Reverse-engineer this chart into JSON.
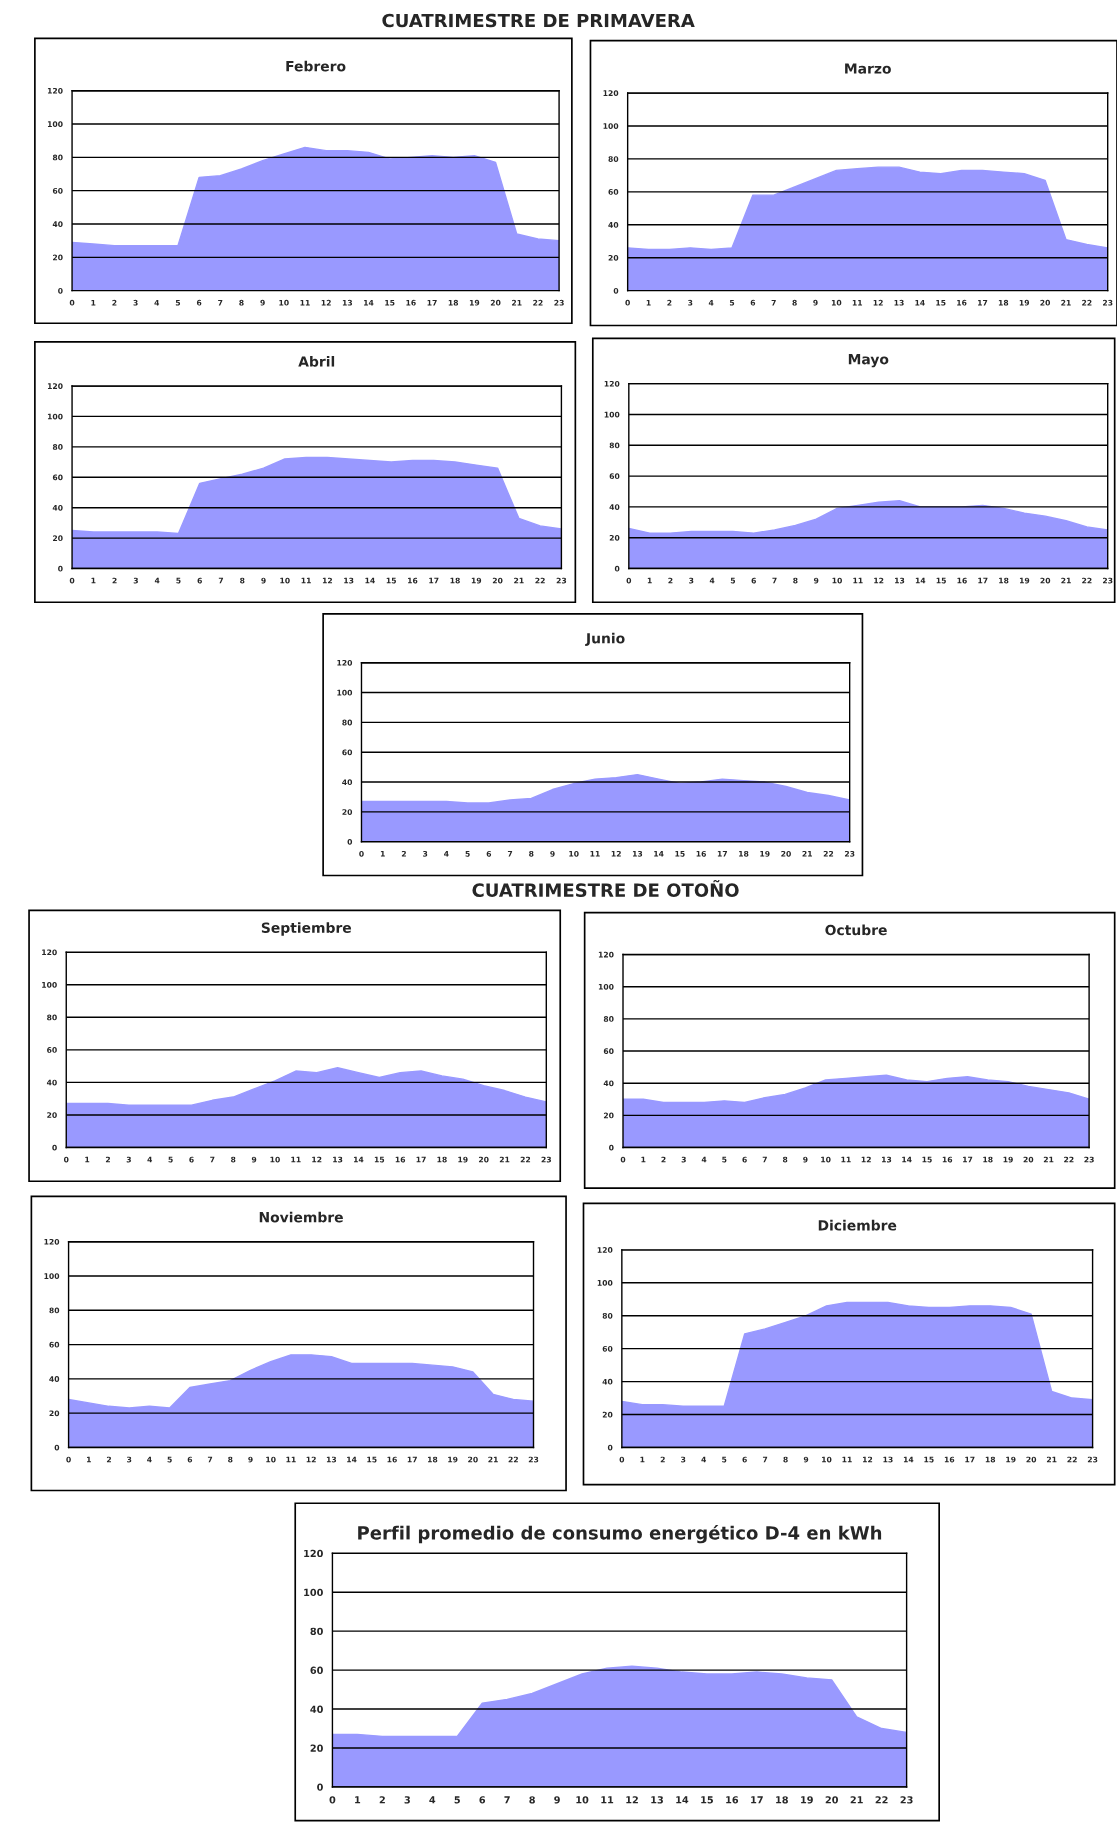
{
  "chart_data": [
    {
      "type": "area",
      "title": "Febrero",
      "annotations": [
        "CUATRIMESTRE DE PRIMAVERA"
      ],
      "categories": [
        "0",
        "1",
        "2",
        "3",
        "4",
        "5",
        "6",
        "7",
        "8",
        "9",
        "10",
        "11",
        "12",
        "13",
        "14",
        "15",
        "16",
        "17",
        "18",
        "19",
        "20",
        "21",
        "22",
        "23"
      ],
      "series": [
        {
          "color": "#9999ff",
          "values": [
            29,
            28,
            27,
            27,
            27,
            27,
            68,
            69,
            73,
            78,
            82,
            86,
            84,
            84,
            83,
            79,
            80,
            81,
            80,
            81,
            77,
            34,
            31,
            30
          ]
        }
      ],
      "ylim": [
        0,
        120
      ],
      "yticks": [
        0,
        20,
        40,
        60,
        80,
        100,
        120
      ],
      "grid": "y"
    },
    {
      "type": "area",
      "title": "Marzo",
      "categories": [
        "0",
        "1",
        "2",
        "3",
        "4",
        "5",
        "6",
        "7",
        "8",
        "9",
        "10",
        "11",
        "12",
        "13",
        "14",
        "15",
        "16",
        "17",
        "18",
        "19",
        "20",
        "21",
        "22",
        "23"
      ],
      "series": [
        {
          "color": "#9999ff",
          "values": [
            26,
            25,
            25,
            26,
            25,
            26,
            58,
            58,
            63,
            68,
            73,
            74,
            75,
            75,
            72,
            71,
            73,
            73,
            72,
            71,
            67,
            31,
            28,
            26
          ]
        }
      ],
      "ylim": [
        0,
        120
      ],
      "yticks": [
        0,
        20,
        40,
        60,
        80,
        100,
        120
      ],
      "grid": "y"
    },
    {
      "type": "area",
      "title": "Abril",
      "categories": [
        "0",
        "1",
        "2",
        "3",
        "4",
        "5",
        "6",
        "7",
        "8",
        "9",
        "10",
        "11",
        "12",
        "13",
        "14",
        "15",
        "16",
        "17",
        "18",
        "19",
        "20",
        "21",
        "22",
        "23"
      ],
      "series": [
        {
          "color": "#9999ff",
          "values": [
            25,
            24,
            24,
            24,
            24,
            23,
            56,
            59,
            62,
            66,
            72,
            73,
            73,
            72,
            71,
            70,
            71,
            71,
            70,
            68,
            66,
            33,
            28,
            26
          ]
        }
      ],
      "ylim": [
        0,
        120
      ],
      "yticks": [
        0,
        20,
        40,
        60,
        80,
        100,
        120
      ],
      "grid": "y"
    },
    {
      "type": "area",
      "title": "Mayo",
      "categories": [
        "0",
        "1",
        "2",
        "3",
        "4",
        "5",
        "6",
        "7",
        "8",
        "9",
        "10",
        "11",
        "12",
        "13",
        "14",
        "15",
        "16",
        "17",
        "18",
        "19",
        "20",
        "21",
        "22",
        "23"
      ],
      "series": [
        {
          "color": "#9999ff",
          "values": [
            26,
            23,
            23,
            24,
            24,
            24,
            23,
            25,
            28,
            32,
            39,
            41,
            43,
            44,
            40,
            40,
            40,
            41,
            39,
            36,
            34,
            31,
            27,
            25
          ]
        }
      ],
      "ylim": [
        0,
        120
      ],
      "yticks": [
        0,
        20,
        40,
        60,
        80,
        100,
        120
      ],
      "grid": "y"
    },
    {
      "type": "area",
      "title": "Junio",
      "categories": [
        "0",
        "1",
        "2",
        "3",
        "4",
        "5",
        "6",
        "7",
        "8",
        "9",
        "10",
        "11",
        "12",
        "13",
        "14",
        "15",
        "16",
        "17",
        "18",
        "19",
        "20",
        "21",
        "22",
        "23"
      ],
      "series": [
        {
          "color": "#9999ff",
          "values": [
            27,
            27,
            27,
            27,
            27,
            26,
            26,
            28,
            29,
            35,
            39,
            42,
            43,
            45,
            42,
            39,
            40,
            42,
            41,
            40,
            37,
            33,
            31,
            28
          ]
        }
      ],
      "ylim": [
        0,
        120
      ],
      "yticks": [
        0,
        20,
        40,
        60,
        80,
        100,
        120
      ],
      "grid": "y"
    },
    {
      "type": "area",
      "title": "Septiembre",
      "annotations": [
        "CUATRIMESTRE DE OTOÑO"
      ],
      "categories": [
        "0",
        "1",
        "2",
        "3",
        "4",
        "5",
        "6",
        "7",
        "8",
        "9",
        "10",
        "11",
        "12",
        "13",
        "14",
        "15",
        "16",
        "17",
        "18",
        "19",
        "20",
        "21",
        "22",
        "23"
      ],
      "series": [
        {
          "color": "#9999ff",
          "values": [
            27,
            27,
            27,
            26,
            26,
            26,
            26,
            29,
            31,
            36,
            41,
            47,
            46,
            49,
            46,
            43,
            46,
            47,
            44,
            42,
            38,
            35,
            31,
            28
          ]
        }
      ],
      "ylim": [
        0,
        120
      ],
      "yticks": [
        0,
        20,
        40,
        60,
        80,
        100,
        120
      ],
      "grid": "y"
    },
    {
      "type": "area",
      "title": "Octubre",
      "categories": [
        "0",
        "1",
        "2",
        "3",
        "4",
        "5",
        "6",
        "7",
        "8",
        "9",
        "10",
        "11",
        "12",
        "13",
        "14",
        "15",
        "16",
        "17",
        "18",
        "19",
        "20",
        "21",
        "22",
        "23"
      ],
      "series": [
        {
          "color": "#9999ff",
          "values": [
            30,
            30,
            28,
            28,
            28,
            29,
            28,
            31,
            33,
            37,
            42,
            43,
            44,
            45,
            42,
            41,
            43,
            44,
            42,
            41,
            38,
            36,
            34,
            30
          ]
        }
      ],
      "ylim": [
        0,
        120
      ],
      "yticks": [
        0,
        20,
        40,
        60,
        80,
        100,
        120
      ],
      "grid": "y"
    },
    {
      "type": "area",
      "title": "Noviembre",
      "categories": [
        "0",
        "1",
        "2",
        "3",
        "4",
        "5",
        "6",
        "7",
        "8",
        "9",
        "10",
        "11",
        "12",
        "13",
        "14",
        "15",
        "16",
        "17",
        "18",
        "19",
        "20",
        "21",
        "22",
        "23"
      ],
      "series": [
        {
          "color": "#9999ff",
          "values": [
            28,
            26,
            24,
            23,
            24,
            23,
            35,
            37,
            39,
            45,
            50,
            54,
            54,
            53,
            49,
            49,
            49,
            49,
            48,
            47,
            44,
            31,
            28,
            27
          ]
        }
      ],
      "ylim": [
        0,
        120
      ],
      "yticks": [
        0,
        20,
        40,
        60,
        80,
        100,
        120
      ],
      "grid": "y"
    },
    {
      "type": "area",
      "title": "Diciembre",
      "categories": [
        "0",
        "1",
        "2",
        "3",
        "4",
        "5",
        "6",
        "7",
        "8",
        "9",
        "10",
        "11",
        "12",
        "13",
        "14",
        "15",
        "16",
        "17",
        "18",
        "19",
        "20",
        "21",
        "22",
        "23"
      ],
      "series": [
        {
          "color": "#9999ff",
          "values": [
            28,
            26,
            26,
            25,
            25,
            25,
            69,
            72,
            76,
            80,
            86,
            88,
            88,
            88,
            86,
            85,
            85,
            86,
            86,
            85,
            81,
            34,
            30,
            29
          ]
        }
      ],
      "ylim": [
        0,
        120
      ],
      "yticks": [
        0,
        20,
        40,
        60,
        80,
        100,
        120
      ],
      "grid": "y"
    },
    {
      "type": "area",
      "title": "Perfil promedio de consumo energético D-4 en kWh",
      "categories": [
        "0",
        "1",
        "2",
        "3",
        "4",
        "5",
        "6",
        "7",
        "8",
        "9",
        "10",
        "11",
        "12",
        "13",
        "14",
        "15",
        "16",
        "17",
        "18",
        "19",
        "20",
        "21",
        "22",
        "23"
      ],
      "series": [
        {
          "color": "#9999ff",
          "values": [
            27,
            27,
            26,
            26,
            26,
            26,
            43,
            45,
            48,
            53,
            58,
            61,
            62,
            61,
            59,
            58,
            58,
            59,
            58,
            56,
            55,
            36,
            30,
            28
          ]
        }
      ],
      "ylim": [
        0,
        120
      ],
      "yticks": [
        0,
        20,
        40,
        60,
        80,
        100,
        120
      ],
      "grid": "y"
    }
  ]
}
